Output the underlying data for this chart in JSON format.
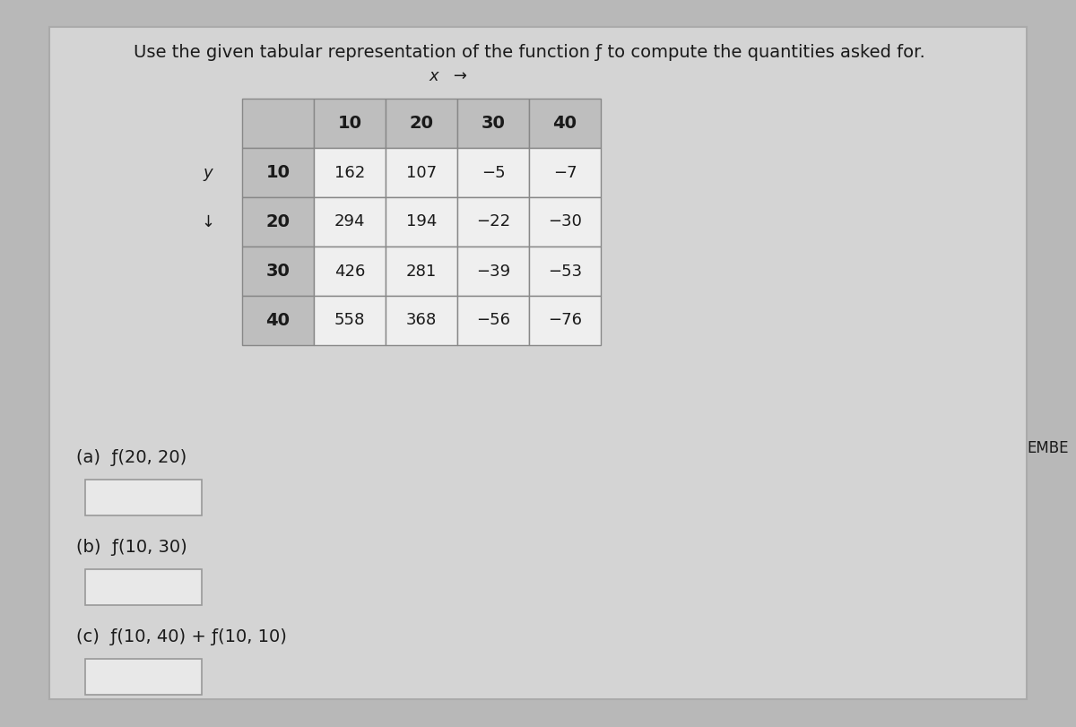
{
  "title": "Use the given tabular representation of the function ƒ to compute the quantities asked for.",
  "title_fontsize": 14,
  "col_headers": [
    "10",
    "20",
    "30",
    "40"
  ],
  "row_headers": [
    "10",
    "20",
    "30",
    "40"
  ],
  "table_data": [
    [
      162,
      107,
      -5,
      -7
    ],
    [
      294,
      194,
      -22,
      -30
    ],
    [
      426,
      281,
      -39,
      -53
    ],
    [
      558,
      368,
      -56,
      -76
    ]
  ],
  "questions": [
    "(a)  f(20, 20)",
    "(b)  f(10, 30)",
    "(c)  f(10, 40) + f(10, 10)"
  ],
  "header_bg": "#bebebe",
  "cell_bg": "#efefef",
  "outer_bg": "#b8b8b8",
  "inner_bg": "#d0d0d0",
  "border_color": "#888888",
  "text_color": "#1a1a1a",
  "answer_box_color": "#e8e8e8",
  "answer_box_border": "#999999",
  "embe_text": "EMBE"
}
